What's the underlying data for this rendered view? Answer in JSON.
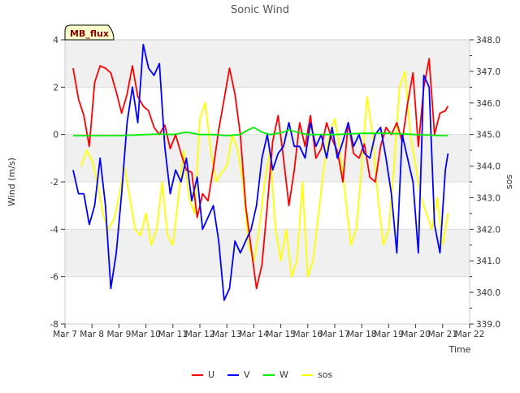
{
  "chart_data": {
    "type": "line",
    "title": "Sonic Wind",
    "xlabel": "Time",
    "ylabel": "Wind (m/s)",
    "y2label": "sos",
    "badge": "MB_flux",
    "xlim": [
      7,
      22
    ],
    "ylim": [
      -8,
      4
    ],
    "y2lim": [
      339.0,
      348.0
    ],
    "x_ticks": [
      7,
      8,
      9,
      10,
      11,
      12,
      13,
      14,
      15,
      16,
      17,
      18,
      19,
      20,
      21,
      22
    ],
    "x_tick_labels": [
      "Mar 7",
      "Mar 8",
      "Mar 9",
      "Mar 10",
      "Mar 11",
      "Mar 12",
      "Mar 13",
      "Mar 14",
      "Mar 15",
      "Mar 16",
      "Mar 17",
      "Mar 18",
      "Mar 19",
      "Mar 20",
      "Mar 21",
      "Mar 22"
    ],
    "y_ticks": [
      -8,
      -6,
      -4,
      -2,
      0,
      2,
      4
    ],
    "y_tick_labels": [
      "-8",
      "-6",
      "-4",
      "-2",
      "0",
      "2",
      "4"
    ],
    "y2_ticks": [
      339.0,
      340.0,
      341.0,
      342.0,
      343.0,
      344.0,
      345.0,
      346.0,
      347.0,
      348.0
    ],
    "y2_tick_labels": [
      "339.0",
      "340.0",
      "341.0",
      "342.0",
      "343.0",
      "344.0",
      "345.0",
      "346.0",
      "347.0",
      "348.0"
    ],
    "series": [
      {
        "name": "U",
        "axis": "left",
        "color": "#ff0000",
        "x": [
          7.3,
          7.5,
          7.7,
          7.9,
          8.1,
          8.3,
          8.5,
          8.7,
          8.9,
          9.1,
          9.3,
          9.5,
          9.7,
          9.9,
          10.1,
          10.3,
          10.5,
          10.7,
          10.9,
          11.1,
          11.3,
          11.5,
          11.7,
          11.9,
          12.1,
          12.3,
          12.5,
          12.7,
          12.9,
          13.1,
          13.3,
          13.5,
          13.7,
          13.9,
          14.1,
          14.3,
          14.5,
          14.7,
          14.9,
          15.1,
          15.3,
          15.5,
          15.7,
          15.9,
          16.1,
          16.3,
          16.5,
          16.7,
          16.9,
          17.1,
          17.3,
          17.5,
          17.7,
          17.9,
          18.1,
          18.3,
          18.5,
          18.7,
          18.9,
          19.1,
          19.3,
          19.5,
          19.7,
          19.9,
          20.1,
          20.3,
          20.5,
          20.7,
          20.9,
          21.1,
          21.2
        ],
        "values": [
          2.8,
          1.5,
          0.8,
          -0.5,
          2.2,
          2.9,
          2.8,
          2.6,
          1.8,
          0.9,
          1.7,
          2.9,
          1.6,
          1.2,
          1.0,
          0.3,
          0.0,
          0.4,
          -0.6,
          0.0,
          -0.8,
          -1.5,
          -1.6,
          -3.5,
          -2.5,
          -2.8,
          -1.4,
          0.2,
          1.5,
          2.8,
          1.7,
          0.0,
          -3.0,
          -4.8,
          -6.5,
          -5.5,
          -3.0,
          -0.3,
          0.8,
          -1.0,
          -3.0,
          -1.5,
          0.5,
          -0.5,
          0.8,
          -1.0,
          -0.6,
          0.5,
          -0.2,
          -0.7,
          -2.0,
          0.5,
          -0.8,
          -1.0,
          -0.4,
          -1.8,
          -2.0,
          -0.5,
          0.3,
          0.0,
          0.5,
          -0.3,
          1.3,
          2.6,
          -0.5,
          2.0,
          3.2,
          0.0,
          0.9,
          1.0,
          1.2
        ]
      },
      {
        "name": "V",
        "axis": "left",
        "color": "#0000ff",
        "x": [
          7.3,
          7.5,
          7.7,
          7.9,
          8.1,
          8.3,
          8.5,
          8.7,
          8.9,
          9.1,
          9.3,
          9.5,
          9.7,
          9.9,
          10.1,
          10.3,
          10.5,
          10.7,
          10.9,
          11.1,
          11.3,
          11.5,
          11.7,
          11.9,
          12.1,
          12.3,
          12.5,
          12.7,
          12.9,
          13.1,
          13.3,
          13.5,
          13.7,
          13.9,
          14.1,
          14.3,
          14.5,
          14.7,
          14.9,
          15.1,
          15.3,
          15.5,
          15.7,
          15.9,
          16.1,
          16.3,
          16.5,
          16.7,
          16.9,
          17.1,
          17.3,
          17.5,
          17.7,
          17.9,
          18.1,
          18.3,
          18.5,
          18.7,
          18.9,
          19.1,
          19.3,
          19.5,
          19.7,
          19.9,
          20.1,
          20.3,
          20.5,
          20.7,
          20.9,
          21.1,
          21.2
        ],
        "values": [
          -1.5,
          -2.5,
          -2.5,
          -3.8,
          -3.0,
          -1.0,
          -3.0,
          -6.5,
          -5.0,
          -2.5,
          0.5,
          2.0,
          0.5,
          3.8,
          2.8,
          2.5,
          3.0,
          -0.5,
          -2.5,
          -1.5,
          -2.0,
          -1.0,
          -2.8,
          -1.8,
          -4.0,
          -3.5,
          -3.0,
          -4.5,
          -7.0,
          -6.5,
          -4.5,
          -5.0,
          -4.5,
          -4.0,
          -3.0,
          -1.0,
          0.0,
          -1.5,
          -0.8,
          -0.5,
          0.5,
          -0.5,
          -0.5,
          -1.0,
          0.5,
          -0.5,
          0.0,
          -1.0,
          0.3,
          -1.0,
          -0.3,
          0.5,
          -0.5,
          0.0,
          -0.8,
          -1.0,
          0.0,
          0.3,
          -1.0,
          -2.5,
          -5.0,
          0.0,
          -1.0,
          -2.0,
          -5.0,
          2.5,
          2.0,
          -3.8,
          -5.0,
          -1.5,
          -0.8
        ]
      },
      {
        "name": "W",
        "axis": "left",
        "color": "#00ee00",
        "x": [
          7.3,
          8.0,
          9.0,
          10.0,
          10.5,
          11.0,
          11.5,
          12.0,
          12.5,
          13.0,
          13.5,
          13.8,
          14.0,
          14.3,
          14.6,
          14.9,
          15.1,
          15.3,
          15.6,
          16.0,
          17.0,
          18.0,
          19.0,
          20.0,
          21.0,
          21.2
        ],
        "values": [
          -0.05,
          -0.05,
          -0.05,
          0.0,
          0.02,
          0.0,
          0.1,
          0.0,
          0.0,
          -0.05,
          0.0,
          0.2,
          0.3,
          0.1,
          0.0,
          0.05,
          0.1,
          0.2,
          0.1,
          0.0,
          0.0,
          0.05,
          0.05,
          0.0,
          -0.05,
          -0.05
        ]
      },
      {
        "name": "sos",
        "axis": "right",
        "color": "#ffff00",
        "x": [
          7.6,
          7.8,
          8.0,
          8.2,
          8.4,
          8.6,
          8.8,
          9.0,
          9.2,
          9.4,
          9.6,
          9.8,
          10.0,
          10.2,
          10.4,
          10.6,
          10.8,
          11.0,
          11.2,
          11.4,
          11.6,
          11.8,
          12.0,
          12.2,
          12.4,
          12.6,
          12.8,
          13.0,
          13.2,
          13.4,
          13.6,
          13.8,
          14.0,
          14.2,
          14.4,
          14.6,
          14.8,
          15.0,
          15.2,
          15.4,
          15.6,
          15.8,
          16.0,
          16.2,
          16.4,
          16.6,
          16.8,
          17.0,
          17.2,
          17.4,
          17.6,
          17.8,
          18.0,
          18.2,
          18.4,
          18.6,
          18.8,
          19.0,
          19.2,
          19.4,
          19.6,
          19.8,
          20.0,
          20.2,
          20.4,
          20.6,
          20.8,
          21.0,
          21.2
        ],
        "values": [
          344.0,
          344.5,
          344.2,
          343.5,
          342.5,
          342.0,
          342.3,
          343.0,
          344.0,
          343.0,
          342.0,
          341.8,
          342.5,
          341.5,
          342.0,
          343.5,
          341.8,
          341.5,
          343.0,
          344.5,
          343.0,
          342.5,
          345.5,
          346.0,
          344.5,
          343.5,
          343.8,
          344.0,
          345.0,
          344.5,
          343.5,
          341.5,
          341.0,
          342.0,
          343.5,
          344.5,
          342.0,
          341.0,
          342.0,
          340.5,
          341.0,
          343.5,
          340.5,
          341.0,
          342.5,
          344.0,
          345.0,
          345.5,
          344.5,
          343.0,
          341.5,
          342.0,
          344.0,
          346.2,
          345.0,
          343.0,
          341.5,
          342.0,
          344.0,
          346.5,
          347.0,
          345.0,
          344.0,
          343.0,
          342.5,
          342.0,
          343.0,
          341.5,
          342.5
        ]
      }
    ]
  }
}
